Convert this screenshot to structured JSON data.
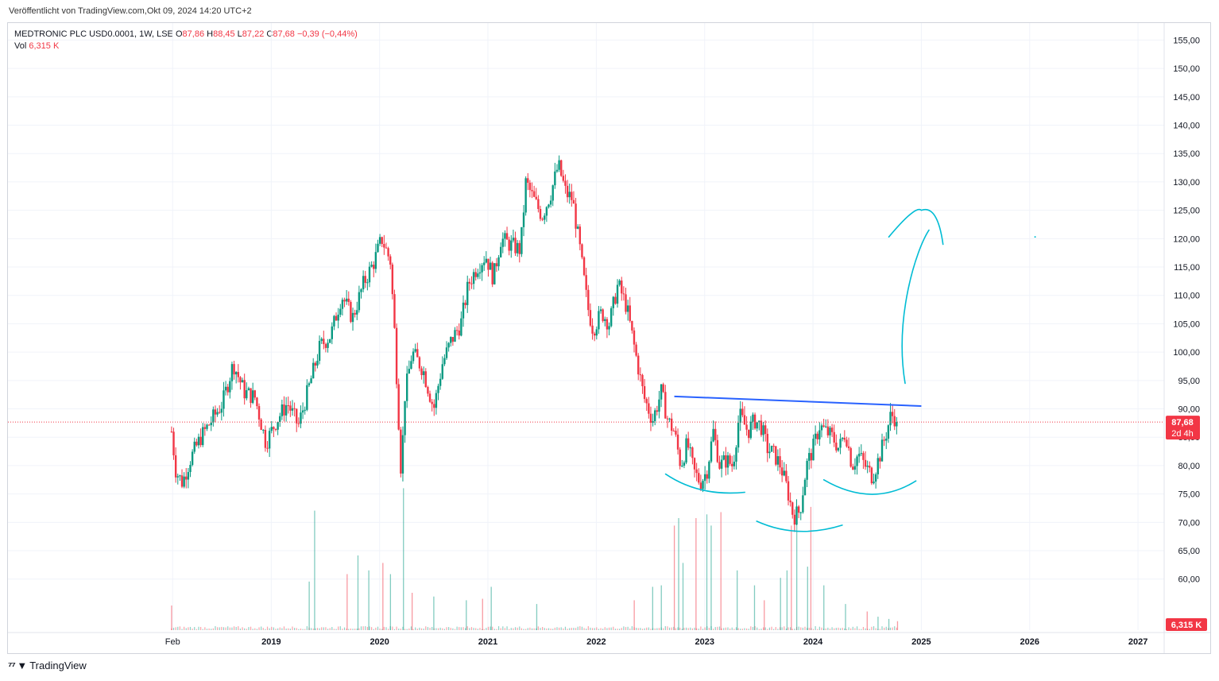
{
  "header": {
    "published": "Veröffentlicht von TradingView.com,Okt 09, 2024 14:20 UTC+2"
  },
  "legend": {
    "symbol": "MEDTRONIC PLC USD0.0001, 1W, LSE",
    "open_label": "O",
    "open": "87,86",
    "high_label": "H",
    "high": "88,45",
    "low_label": "L",
    "low": "87,22",
    "close_label": "C",
    "close": "87,68",
    "change": "−0,39 (−0,44%)",
    "vol_label": "Vol",
    "vol": "6,315 K"
  },
  "price_label": {
    "price": "87,68",
    "countdown": "2d 4h"
  },
  "volume_label": "6,315 K",
  "footer": {
    "brand": "TradingView",
    "logo": "tradingview-logo-icon"
  },
  "colors": {
    "up": "#089981",
    "down": "#f23645",
    "trendline": "#2962ff",
    "drawing": "#00bcd4"
  },
  "chart_data": {
    "type": "candlestick",
    "title": "MEDTRONIC PLC USD0.0001, 1W, LSE",
    "ylim": [
      51,
      158
    ],
    "y_ticks": [
      "155,00",
      "150,00",
      "145,00",
      "140,00",
      "135,00",
      "130,00",
      "125,00",
      "120,00",
      "115,00",
      "110,00",
      "105,00",
      "100,00",
      "95,00",
      "90,00",
      "85,00",
      "80,00",
      "75,00",
      "70,00",
      "65,00",
      "60,00"
    ],
    "y_tick_values": [
      155,
      150,
      145,
      140,
      135,
      130,
      125,
      120,
      115,
      110,
      105,
      100,
      95,
      90,
      85,
      80,
      75,
      70,
      65,
      60
    ],
    "x_ticks": [
      "Feb",
      "2019",
      "2020",
      "2021",
      "2022",
      "2023",
      "2024",
      "2025",
      "2026",
      "2027"
    ],
    "x_tick_dates": [
      2018.09,
      2019.0,
      2020.0,
      2021.0,
      2022.0,
      2023.0,
      2024.0,
      2025.0,
      2026.0,
      2027.0
    ],
    "grid": true,
    "last_price": 87.68,
    "price_path": [
      [
        2018.08,
        86
      ],
      [
        2018.12,
        79
      ],
      [
        2018.18,
        77
      ],
      [
        2018.25,
        81
      ],
      [
        2018.35,
        85
      ],
      [
        2018.45,
        88
      ],
      [
        2018.55,
        91
      ],
      [
        2018.65,
        98
      ],
      [
        2018.75,
        93
      ],
      [
        2018.85,
        92
      ],
      [
        2018.95,
        84
      ],
      [
        2019.05,
        88
      ],
      [
        2019.15,
        91
      ],
      [
        2019.25,
        87
      ],
      [
        2019.35,
        94
      ],
      [
        2019.45,
        101
      ],
      [
        2019.55,
        103
      ],
      [
        2019.65,
        110
      ],
      [
        2019.75,
        106
      ],
      [
        2019.85,
        112
      ],
      [
        2019.95,
        116
      ],
      [
        2020.02,
        120
      ],
      [
        2020.1,
        116
      ],
      [
        2020.14,
        103
      ],
      [
        2020.2,
        78
      ],
      [
        2020.23,
        92
      ],
      [
        2020.3,
        100
      ],
      [
        2020.4,
        97
      ],
      [
        2020.5,
        90
      ],
      [
        2020.58,
        98
      ],
      [
        2020.66,
        102
      ],
      [
        2020.75,
        105
      ],
      [
        2020.82,
        112
      ],
      [
        2020.9,
        115
      ],
      [
        2020.98,
        117
      ],
      [
        2021.05,
        113
      ],
      [
        2021.12,
        120
      ],
      [
        2021.2,
        119
      ],
      [
        2021.3,
        118
      ],
      [
        2021.35,
        130
      ],
      [
        2021.42,
        127
      ],
      [
        2021.5,
        124
      ],
      [
        2021.58,
        128
      ],
      [
        2021.65,
        133
      ],
      [
        2021.72,
        128
      ],
      [
        2021.78,
        127
      ],
      [
        2021.85,
        118
      ],
      [
        2021.92,
        108
      ],
      [
        2021.97,
        104
      ],
      [
        2022.05,
        107
      ],
      [
        2022.12,
        105
      ],
      [
        2022.2,
        112
      ],
      [
        2022.28,
        108
      ],
      [
        2022.36,
        100
      ],
      [
        2022.44,
        92
      ],
      [
        2022.52,
        88
      ],
      [
        2022.6,
        93
      ],
      [
        2022.66,
        88
      ],
      [
        2022.72,
        86
      ],
      [
        2022.78,
        80
      ],
      [
        2022.84,
        84
      ],
      [
        2022.9,
        79
      ],
      [
        2022.96,
        77
      ],
      [
        2023.02,
        79
      ],
      [
        2023.08,
        86
      ],
      [
        2023.14,
        80
      ],
      [
        2023.2,
        81
      ],
      [
        2023.26,
        80
      ],
      [
        2023.32,
        89
      ],
      [
        2023.4,
        86
      ],
      [
        2023.46,
        88
      ],
      [
        2023.52,
        87
      ],
      [
        2023.58,
        83
      ],
      [
        2023.64,
        82
      ],
      [
        2023.7,
        80
      ],
      [
        2023.76,
        76
      ],
      [
        2023.82,
        71
      ],
      [
        2023.88,
        72
      ],
      [
        2023.94,
        80
      ],
      [
        2024.0,
        83
      ],
      [
        2024.06,
        87
      ],
      [
        2024.12,
        86
      ],
      [
        2024.18,
        85
      ],
      [
        2024.24,
        83
      ],
      [
        2024.3,
        86
      ],
      [
        2024.36,
        80
      ],
      [
        2024.42,
        82
      ],
      [
        2024.48,
        80
      ],
      [
        2024.55,
        78
      ],
      [
        2024.62,
        82
      ],
      [
        2024.68,
        86
      ],
      [
        2024.72,
        89
      ],
      [
        2024.77,
        88.2
      ],
      [
        2024.78,
        87.68
      ]
    ],
    "volume_spikes": [
      [
        2018.08,
        3.3
      ],
      [
        2019.35,
        6.5
      ],
      [
        2019.4,
        16
      ],
      [
        2019.7,
        7.5
      ],
      [
        2019.8,
        10
      ],
      [
        2019.9,
        8
      ],
      [
        2020.03,
        9
      ],
      [
        2020.1,
        7.5
      ],
      [
        2020.22,
        19
      ],
      [
        2020.3,
        5
      ],
      [
        2020.5,
        4.5
      ],
      [
        2020.8,
        4
      ],
      [
        2020.95,
        4.2
      ],
      [
        2021.03,
        5.8
      ],
      [
        2021.45,
        3.5
      ],
      [
        2022.35,
        4
      ],
      [
        2022.52,
        5.8
      ],
      [
        2022.6,
        6
      ],
      [
        2022.72,
        14
      ],
      [
        2022.76,
        15
      ],
      [
        2022.8,
        9
      ],
      [
        2022.92,
        15
      ],
      [
        2023.02,
        15.5
      ],
      [
        2023.06,
        14
      ],
      [
        2023.15,
        15.8
      ],
      [
        2023.3,
        8
      ],
      [
        2023.46,
        6
      ],
      [
        2023.55,
        4
      ],
      [
        2023.7,
        7
      ],
      [
        2023.76,
        8
      ],
      [
        2023.8,
        14
      ],
      [
        2023.85,
        15
      ],
      [
        2023.95,
        8.5
      ],
      [
        2023.98,
        16.5
      ],
      [
        2024.1,
        6
      ],
      [
        2024.3,
        3.5
      ],
      [
        2024.5,
        2.5
      ],
      [
        2024.6,
        1.8
      ],
      [
        2024.7,
        1.5
      ],
      [
        2024.78,
        1.2
      ]
    ],
    "trendline": {
      "from": [
        2022.72,
        92.2
      ],
      "to": [
        2025.0,
        90.5
      ]
    },
    "drawings": [
      "left-shoulder-arc",
      "head-arc",
      "right-shoulder-arc",
      "upward-arrow"
    ]
  }
}
